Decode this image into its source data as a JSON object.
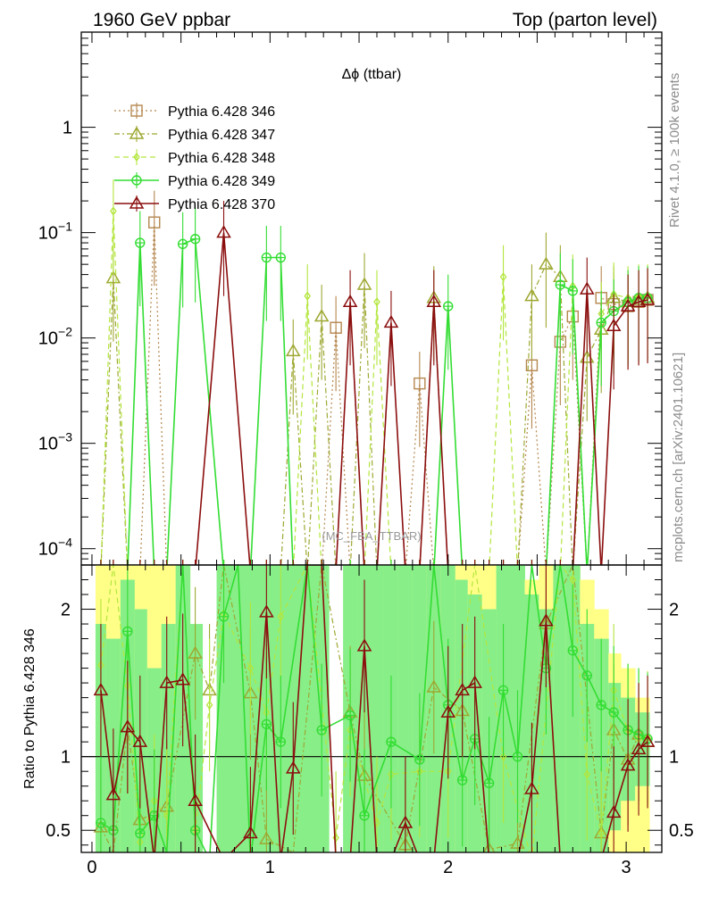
{
  "header": {
    "left": "1960 GeV ppbar",
    "right": "Top (parton level)"
  },
  "side_text": {
    "rivet": "Rivet 4.1.0, ≥ 100k events",
    "mcplots": "mcplots.cern.ch [arXiv:2401.10621]"
  },
  "colors": {
    "s346": "#b5874f",
    "s347": "#9ea832",
    "s348": "#b3e63c",
    "s349": "#33dd33",
    "s370": "#8b0e0e",
    "band_yellow": "#ffff88",
    "band_green": "#88ee88"
  },
  "chart_data": [
    {
      "type": "line",
      "title": "Δϕ (ttbar)",
      "watermark": "(MC_FBA_TTBAR)",
      "xlabel": "",
      "ylabel": "",
      "yscale": "log",
      "xlim": [
        -0.06,
        3.2
      ],
      "ylim": [
        7e-05,
        8
      ],
      "x_ticks": [
        "0",
        "1",
        "2",
        "3"
      ],
      "y_ticks": [
        {
          "value": 0.0001,
          "base": "10",
          "exp": "−4"
        },
        {
          "value": 0.001,
          "base": "10",
          "exp": "−3"
        },
        {
          "value": 0.01,
          "base": "10",
          "exp": "−2"
        },
        {
          "value": 0.1,
          "base": "10",
          "exp": "−1"
        },
        {
          "value": 1,
          "base": "1",
          "exp": ""
        }
      ],
      "x": [
        0.05,
        0.12,
        0.2,
        0.27,
        0.35,
        0.42,
        0.51,
        0.58,
        0.74,
        0.89,
        0.98,
        1.06,
        1.13,
        1.21,
        1.29,
        1.37,
        1.45,
        1.53,
        1.6,
        1.68,
        1.76,
        1.84,
        1.92,
        2.0,
        2.08,
        2.15,
        2.23,
        2.31,
        2.39,
        2.47,
        2.55,
        2.63,
        2.7,
        2.78,
        2.86,
        2.93,
        3.01,
        3.07,
        3.12
      ],
      "series": [
        {
          "name": "Pythia 6.428 346",
          "marker": "square",
          "dash": "dotted",
          "values": [
            0,
            0,
            0,
            0,
            0.125,
            0,
            0,
            0,
            0,
            0,
            0,
            0,
            0,
            0,
            0,
            0.0125,
            0,
            0,
            0,
            0,
            0,
            0.0037,
            0,
            0,
            0,
            0,
            0,
            0,
            0,
            0.0055,
            0,
            0.0092,
            0.016,
            0,
            0.024,
            0.021,
            0.02,
            0.022,
            0.023
          ]
        },
        {
          "name": "Pythia 6.428 347",
          "marker": "triangle",
          "dash": "dashdot",
          "values": [
            0,
            0.037,
            0,
            0,
            0,
            0,
            0,
            0,
            0,
            0,
            0,
            0,
            0.0075,
            0,
            0.016,
            0,
            0,
            0.032,
            0,
            0,
            0,
            0,
            0.024,
            0,
            0,
            0,
            0,
            0,
            0,
            0.025,
            0.05,
            0.038,
            0,
            0.0065,
            0.012,
            0.024,
            0.022,
            0.023,
            0.024
          ]
        },
        {
          "name": "Pythia 6.428 348",
          "marker": "diamond",
          "dash": "dashed",
          "values": [
            0,
            0.16,
            0,
            0,
            0,
            0,
            0,
            0,
            0,
            0,
            0,
            0,
            0,
            0.025,
            0,
            0,
            0,
            0,
            0.022,
            0,
            0,
            0,
            0,
            0,
            0,
            0,
            0,
            0.038,
            0,
            0,
            0,
            0,
            0.031,
            0,
            0.017,
            0.026,
            0.024,
            0.025,
            0.025
          ]
        },
        {
          "name": "Pythia 6.428 349",
          "marker": "crosscircle",
          "dash": "solid",
          "values": [
            0,
            0,
            0,
            0.08,
            0,
            0,
            0.078,
            0.087,
            0,
            0,
            0.058,
            0.058,
            0,
            0,
            0,
            0,
            0,
            0,
            0,
            0,
            0,
            0,
            0,
            0.02,
            0,
            0,
            0,
            0,
            0,
            0,
            0,
            0.032,
            0.028,
            0,
            0.014,
            0.018,
            0.022,
            0.024,
            0.024
          ]
        },
        {
          "name": "Pythia 6.428 370",
          "marker": "triangle",
          "dash": "solid",
          "values": [
            0,
            0,
            0,
            0,
            0,
            0,
            0,
            0,
            0.1,
            0,
            0,
            0,
            0,
            0,
            0,
            0,
            0.022,
            0,
            0,
            0.014,
            0,
            0,
            0.022,
            0,
            0,
            0,
            0,
            0,
            0,
            0,
            0,
            0,
            0,
            0.029,
            0,
            0.013,
            0.02,
            0.022,
            0.023
          ]
        }
      ]
    },
    {
      "type": "line",
      "ylabel": "Ratio to Pythia 6.428 346",
      "xlim": [
        -0.06,
        3.2
      ],
      "ylim": [
        0.35,
        2.3
      ],
      "x_ticks": [
        "0",
        "1",
        "2",
        "3"
      ],
      "y_ticks": [
        {
          "value": 0.5,
          "label": "0.5"
        },
        {
          "value": 1,
          "label": "1"
        },
        {
          "value": 2,
          "label": "2"
        }
      ],
      "bands": {
        "x": [
          0.02,
          0.08,
          0.16,
          0.24,
          0.31,
          0.39,
          0.47,
          0.55,
          0.62,
          0.7,
          0.78,
          0.86,
          0.94,
          1.02,
          1.09,
          1.17,
          1.25,
          1.33,
          1.41,
          1.49,
          1.57,
          1.64,
          1.72,
          1.8,
          1.88,
          1.96,
          2.04,
          2.11,
          2.19,
          2.27,
          2.35,
          2.43,
          2.51,
          2.59,
          2.66,
          2.74,
          2.82,
          2.9,
          2.97,
          3.05,
          3.13
        ],
        "yellow_lo": [
          0.35,
          0.35,
          0.35,
          0.35,
          0.35,
          0.35,
          0.35,
          0.35,
          0.35,
          0.35,
          0.35,
          0.35,
          0.35,
          0.35,
          0.35,
          0.35,
          0.35,
          0.35,
          0.35,
          0.35,
          0.35,
          0.35,
          0.35,
          0.35,
          0.35,
          0.35,
          0.35,
          0.35,
          0.35,
          0.35,
          0.35,
          0.35,
          0.35,
          0.35,
          0.35,
          0.35,
          0.35,
          0.35,
          0.35,
          0.35
        ],
        "yellow_hi": [
          2.3,
          2.3,
          2.3,
          2.3,
          2.3,
          2.3,
          2.3,
          0,
          0,
          0,
          0,
          0,
          0,
          0,
          0,
          0,
          0,
          0,
          0,
          2.3,
          2.3,
          2.3,
          2.3,
          2.3,
          2.3,
          2.3,
          2.3,
          2.3,
          2.3,
          2.3,
          2.3,
          2.2,
          2.3,
          2.3,
          2.3,
          2.2,
          2.0,
          1.7,
          1.6,
          1.4
        ],
        "green_lo": [
          0.35,
          0.35,
          0.35,
          0.35,
          0.35,
          0.35,
          0.35,
          0.35,
          0.35,
          0.35,
          0.35,
          0.35,
          0.35,
          0.35,
          0.35,
          0.35,
          0.35,
          0.35,
          0.35,
          0.35,
          0.35,
          0.35,
          0.35,
          0.35,
          0.35,
          0.35,
          0.35,
          0.35,
          0.35,
          0.35,
          0.35,
          0.35,
          0.35,
          0.35,
          0.35,
          0.35,
          0.35,
          0.5,
          0.7,
          0.8
        ],
        "green_hi": [
          1.9,
          1.8,
          2.2,
          2.0,
          1.6,
          1.9,
          2.3,
          1.9,
          0,
          2.3,
          2.3,
          2.3,
          2.3,
          2.3,
          2.3,
          2.3,
          2.3,
          0,
          2.3,
          2.3,
          2.3,
          2.3,
          2.3,
          2.3,
          2.3,
          2.3,
          2.2,
          2.1,
          2.0,
          2.3,
          2.3,
          2.1,
          2.0,
          2.3,
          2.3,
          1.9,
          1.8,
          1.5,
          1.4,
          1.3
        ]
      },
      "series": [
        {
          "name": "Pythia 6.428 347",
          "x": [
            0.05,
            0.12,
            0.2,
            0.27,
            0.42,
            0.58,
            0.66,
            0.74,
            0.89,
            0.98,
            1.13,
            1.29,
            1.45,
            1.53,
            1.76,
            1.92,
            2.08,
            2.23,
            2.39,
            2.55,
            2.7,
            2.86,
            2.93,
            3.01,
            3.07,
            3.12
          ],
          "values": [
            0.52,
            0.35,
            1.2,
            0.57,
            0.66,
            1.7,
            1.45,
            2.3,
            1.43,
            0.44,
            0.35,
            2.3,
            1.3,
            0.87,
            0.4,
            1.47,
            1.31,
            0.37,
            0.41,
            1.9,
            2.3,
            0.48,
            1.18,
            0.98,
            1.15,
            1.1
          ]
        },
        {
          "name": "Pythia 6.428 348",
          "x": [
            0.05,
            0.12,
            0.2,
            0.27,
            0.35,
            0.42,
            0.51,
            0.58,
            0.66,
            0.74,
            0.89,
            0.98,
            1.06,
            1.21,
            1.37,
            1.45,
            1.6,
            1.68,
            1.84,
            2.0,
            2.15,
            2.31,
            2.47,
            2.63,
            2.7,
            2.78,
            2.86,
            2.93,
            3.01,
            3.07,
            3.12
          ],
          "values": [
            1.62,
            2.3,
            1.48,
            0.42,
            0.7,
            0.6,
            2.3,
            0.5,
            1.35,
            1.97,
            1.6,
            1.3,
            1.95,
            2.3,
            0.45,
            1.18,
            0.55,
            0.88,
            0.9,
            0.9,
            2.3,
            1.0,
            0.3,
            2.3,
            2.2,
            0.88,
            0.48,
            1.45,
            1.18,
            1.12,
            1.13
          ]
        },
        {
          "name": "Pythia 6.428 349",
          "x": [
            0.05,
            0.12,
            0.2,
            0.27,
            0.35,
            0.42,
            0.51,
            0.58,
            0.66,
            0.74,
            0.82,
            0.89,
            0.98,
            1.06,
            1.21,
            1.29,
            1.45,
            1.53,
            1.68,
            1.84,
            1.92,
            2.0,
            2.08,
            2.15,
            2.23,
            2.31,
            2.39,
            2.47,
            2.55,
            2.63,
            2.7,
            2.78,
            2.86,
            2.93,
            3.01,
            3.07,
            3.12
          ],
          "values": [
            0.55,
            0.5,
            1.85,
            0.48,
            0.6,
            0.35,
            2.3,
            0.5,
            0.3,
            1.95,
            2.3,
            0.3,
            1.22,
            1.1,
            2.3,
            1.18,
            1.28,
            0.6,
            1.1,
            0.98,
            2.3,
            1.35,
            0.84,
            1.12,
            0.82,
            1.45,
            1.0,
            2.3,
            1.6,
            2.3,
            1.72,
            1.55,
            1.35,
            1.3,
            1.18,
            1.15,
            1.12
          ]
        },
        {
          "name": "Pythia 6.428 370",
          "x": [
            0.05,
            0.12,
            0.2,
            0.27,
            0.35,
            0.42,
            0.51,
            0.58,
            0.74,
            0.89,
            0.98,
            1.06,
            1.13,
            1.21,
            1.29,
            1.37,
            1.45,
            1.53,
            1.6,
            1.68,
            1.76,
            1.84,
            1.92,
            2.0,
            2.08,
            2.15,
            2.23,
            2.31,
            2.39,
            2.47,
            2.55,
            2.63,
            2.7,
            2.78,
            2.86,
            2.93,
            3.01,
            3.07,
            3.12
          ],
          "values": [
            1.45,
            0.74,
            1.2,
            1.1,
            0.3,
            1.5,
            1.52,
            0.7,
            0.3,
            0.48,
            1.98,
            0.3,
            0.92,
            2.3,
            2.3,
            0.3,
            0.3,
            1.75,
            0.3,
            0.3,
            0.55,
            0.3,
            0.3,
            1.3,
            1.45,
            1.5,
            0.3,
            0.3,
            0.3,
            0.78,
            1.92,
            0.3,
            0.3,
            0.3,
            0.3,
            0.62,
            0.94,
            1.05,
            1.1
          ]
        }
      ]
    }
  ]
}
